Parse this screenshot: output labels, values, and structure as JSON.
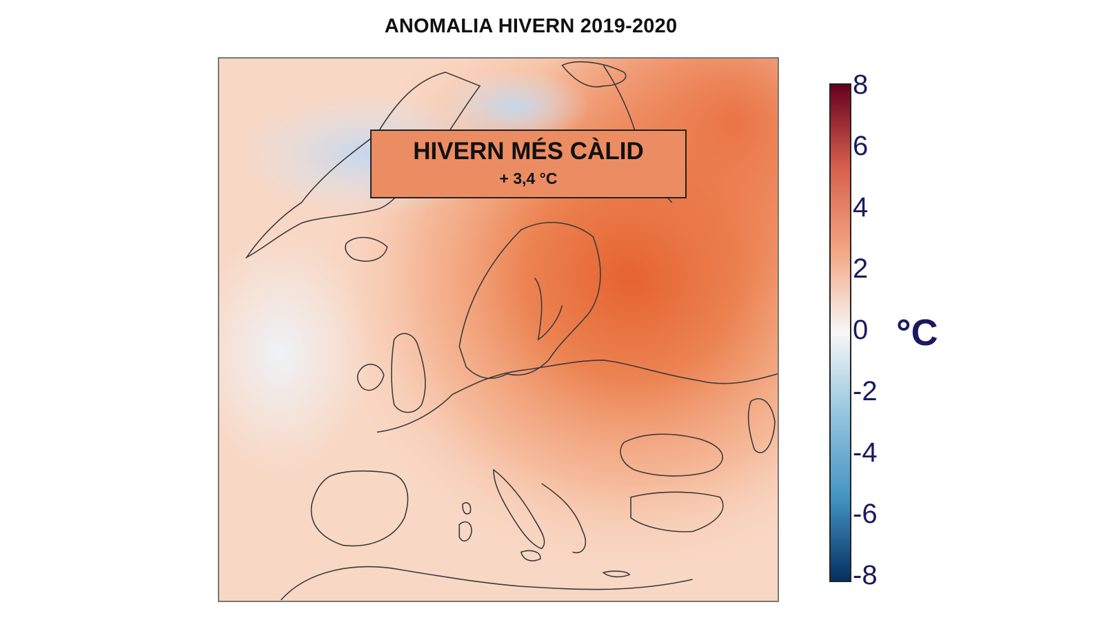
{
  "title": "ANOMALIA HIVERN 2019-2020",
  "annotation": {
    "headline": "HIVERN MÉS CÀLID",
    "value": "+ 3,4 °C"
  },
  "colorbar": {
    "unit": "°C",
    "ticks": [
      "8",
      "6",
      "4",
      "2",
      "0",
      "-2",
      "-4",
      "-6",
      "-8"
    ],
    "range": [
      -8,
      8
    ],
    "colors": {
      "max": "#67001f",
      "warm": "#d6604d",
      "mild": "#f4a582",
      "neutral": "#f7f7f7",
      "cool": "#92c5de",
      "cold": "#4393c3",
      "min": "#053061"
    }
  },
  "map": {
    "region": "Europe",
    "dominant_anomaly_color": "#e8693d",
    "cold_anomaly_color": "#c9d9ee"
  }
}
